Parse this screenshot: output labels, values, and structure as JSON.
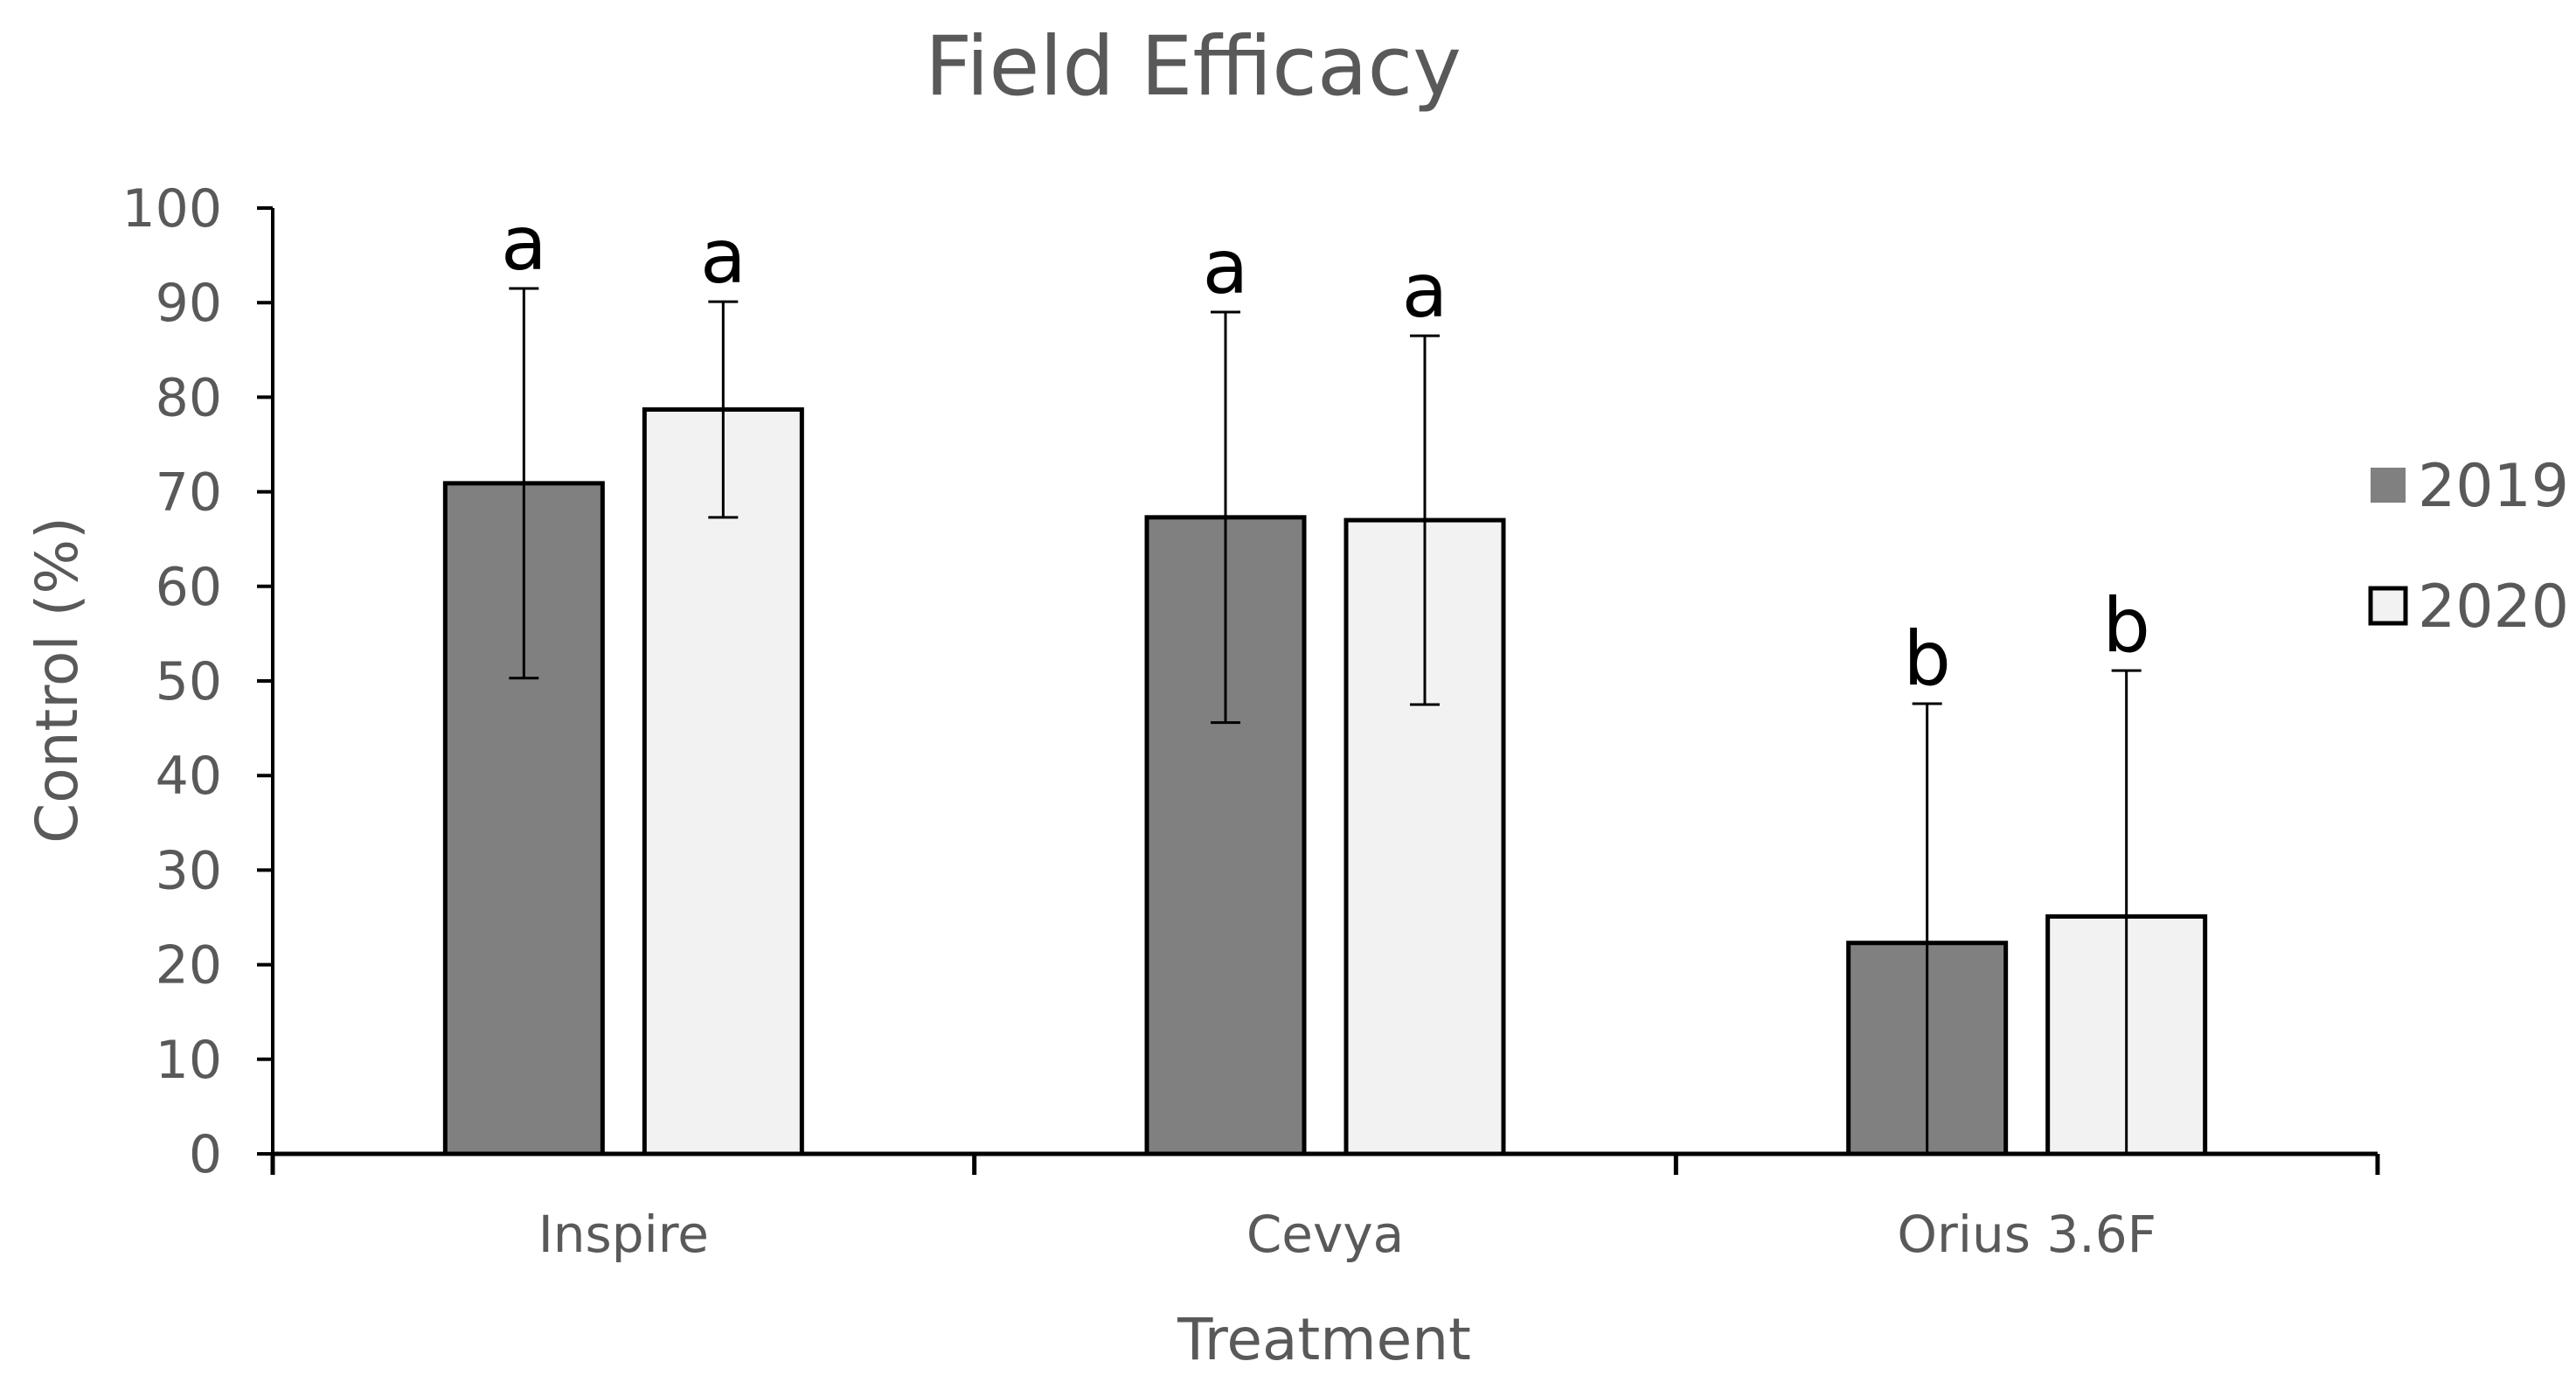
{
  "chart_data": {
    "type": "bar",
    "title": "Field Efficacy",
    "xlabel": "Treatment",
    "ylabel": "Control (%)",
    "ylim": [
      0,
      100
    ],
    "yticks": [
      0,
      10,
      20,
      30,
      40,
      50,
      60,
      70,
      80,
      90,
      100
    ],
    "categories": [
      "Inspire",
      "Cevya",
      "Orius 3.6F"
    ],
    "series": [
      {
        "name": "2019",
        "color": "#808080",
        "values": [
          70.9,
          67.3,
          22.3
        ],
        "errors": [
          20.6,
          21.7,
          25.3
        ],
        "significance": [
          "a",
          "a",
          "b"
        ]
      },
      {
        "name": "2020",
        "color": "#f2f2f2",
        "values": [
          78.7,
          67.0,
          25.1
        ],
        "errors": [
          11.4,
          19.5,
          26.0
        ],
        "significance": [
          "a",
          "a",
          "b"
        ]
      }
    ],
    "legend": [
      "2019",
      "2020"
    ],
    "legend_position": "right"
  }
}
